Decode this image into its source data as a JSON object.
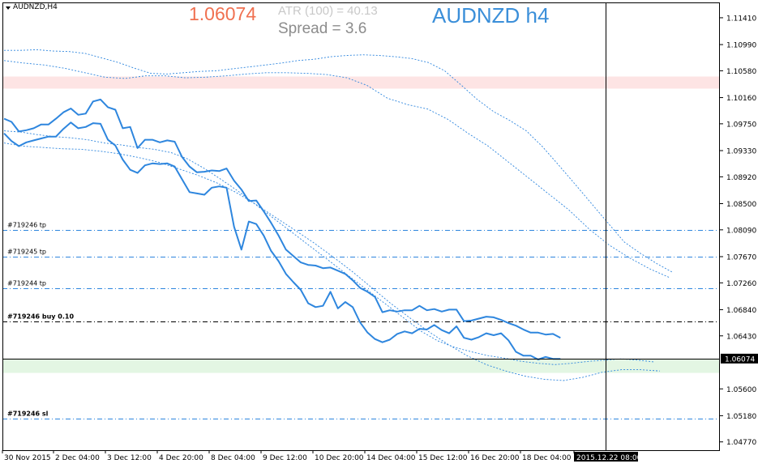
{
  "header": {
    "symbol": "AUDNZD,H4",
    "bid": "1.06074",
    "atr_text": "ATR (100) =  40.13",
    "spread_text": "Spread  =  3.6",
    "big_title": "AUDNZD h4"
  },
  "colors": {
    "price_line": "#2e86de",
    "band_line": "#2e86de",
    "order_line": "#2e86de",
    "resistance_zone": "#fde4e4",
    "support_zone": "#e3f6e3",
    "bid_tag_bg": "#000000",
    "bid_tag_fg": "#ffffff",
    "title_color": "#3b8fd9",
    "bid_color": "#f07050"
  },
  "chart_data": {
    "type": "line",
    "title": "AUDNZD h4",
    "symbol": "AUDNZD,H4",
    "y_range": [
      1.0464,
      1.1165
    ],
    "y_ticks": [
      "1.11410",
      "1.10990",
      "1.10580",
      "1.10160",
      "1.09750",
      "1.09330",
      "1.08920",
      "1.08500",
      "1.08090",
      "1.07670",
      "1.07260",
      "1.06840",
      "1.06430",
      "1.06074",
      "1.05600",
      "1.05180",
      "1.04770"
    ],
    "x_ticks": [
      "30 Nov 2015",
      "2 Dec 04:00",
      "3 Dec 12:00",
      "4 Dec 20:00",
      "8 Dec 04:00",
      "9 Dec 12:00",
      "10 Dec 20:00",
      "14 Dec 04:00",
      "15 Dec 12:00",
      "16 Dec 20:00",
      "18 Dec 04:00",
      "2015.12.22 08:00"
    ],
    "x_index": [
      0,
      1,
      2,
      3,
      4,
      5,
      6,
      7,
      8,
      9,
      10,
      11,
      12,
      13,
      14,
      15,
      16,
      17,
      18,
      19,
      20,
      21,
      22,
      23,
      24,
      25,
      26,
      27,
      28,
      29,
      30,
      31,
      32,
      33,
      34,
      35,
      36,
      37,
      38,
      39,
      40,
      41,
      42,
      43,
      44,
      45,
      46,
      47,
      48,
      49,
      50,
      51,
      52,
      53,
      54,
      55,
      56,
      57,
      58,
      59,
      60,
      61,
      62,
      63,
      64,
      65,
      66,
      67,
      68,
      69,
      70,
      71,
      72,
      73,
      74,
      75,
      76,
      77,
      78,
      79,
      80,
      81,
      82,
      83,
      84,
      85,
      86,
      87,
      88,
      89,
      90,
      91,
      92
    ],
    "series": [
      {
        "values": [
          1.0983,
          1.0978,
          1.0963,
          1.0965,
          1.0968,
          1.0974,
          1.0974,
          1.0983,
          1.0993,
          1.0999,
          1.0989,
          1.0991,
          1.101,
          1.1013,
          1.1001,
          1.0997,
          1.0968,
          1.097,
          1.0937,
          1.095,
          1.095,
          1.0946,
          1.0949,
          1.0947,
          1.0923,
          1.0908,
          1.0899,
          1.09,
          1.0902,
          1.0901,
          1.0905,
          1.0886,
          1.0872,
          1.0854,
          1.0855,
          1.0838,
          1.082,
          1.08,
          1.0778,
          1.0768,
          1.0758,
          1.0754,
          1.0753,
          1.0749,
          1.075,
          1.0745,
          1.074,
          1.073,
          1.0718,
          1.0712,
          1.0704,
          1.068,
          1.0683,
          1.0681,
          1.0683,
          1.0683,
          1.069,
          1.0683,
          1.0685,
          1.0681,
          1.0684,
          1.0684,
          1.0666,
          1.0667,
          1.067,
          1.0673,
          1.0672,
          1.0668,
          1.0663,
          1.0659,
          1.0653,
          1.0648,
          1.0648,
          1.0645,
          1.0646,
          1.064
        ],
        "x_start": 0
      },
      {
        "values": [
          1.096,
          1.0948,
          1.094,
          1.0946,
          1.0949,
          1.0952,
          1.0955,
          1.0955,
          1.0967,
          1.0977,
          1.0968,
          1.097,
          1.0976,
          1.0975,
          1.095,
          1.0941,
          1.0919,
          1.0903,
          1.0898,
          1.091,
          1.0913,
          1.0912,
          1.0913,
          1.0908,
          1.0888,
          1.0868,
          1.0866,
          1.0864,
          1.0875,
          1.0877,
          1.0875,
          1.0814,
          1.0778,
          1.0822,
          1.0818,
          1.08,
          1.0776,
          1.076,
          1.074,
          1.0727,
          1.0715,
          1.0694,
          1.0688,
          1.069,
          1.0712,
          1.0686,
          1.0696,
          1.0688,
          1.0664,
          1.0648,
          1.0638,
          1.0633,
          1.0637,
          1.0646,
          1.065,
          1.0647,
          1.0654,
          1.0653,
          1.066,
          1.0652,
          1.0647,
          1.0658,
          1.064,
          1.0637,
          1.0641,
          1.0647,
          1.0644,
          1.0647,
          1.0636,
          1.0618,
          1.0612,
          1.0612,
          1.0606,
          1.061,
          1.0607,
          1.0607
        ],
        "x_start": 0
      },
      {
        "values": [
          1.109,
          1.109,
          1.1091,
          1.1089,
          1.1088,
          1.1085,
          1.1078,
          1.1071,
          1.1062,
          1.1054,
          1.1053,
          1.1055,
          1.1057,
          1.1058,
          1.1061,
          1.1064,
          1.1067,
          1.107,
          1.1074,
          1.1076,
          1.108,
          1.1082,
          1.1083,
          1.1082,
          1.108,
          1.1077,
          1.1071,
          1.1058,
          1.1036,
          1.1013,
          1.0994,
          1.098,
          1.0964,
          1.0939,
          1.091,
          1.088,
          1.085,
          1.082,
          1.079,
          1.0772,
          1.0756,
          1.0742
        ],
        "x_start": 0,
        "x_step": 2.2
      },
      {
        "values": [
          1.1074,
          1.107,
          1.1067,
          1.1062,
          1.1055,
          1.1048,
          1.1046,
          1.105,
          1.105,
          1.1047,
          1.1048,
          1.105,
          1.1053,
          1.1055,
          1.1055,
          1.1054,
          1.1052,
          1.1047,
          1.1035,
          1.1015,
          1.1005,
          1.0998,
          1.0982,
          1.096,
          1.094,
          1.0915,
          1.089,
          1.0865,
          1.084,
          1.081,
          1.0785,
          1.0765,
          1.0748,
          1.0734
        ],
        "x_start": 0,
        "x_step": 2.72
      },
      {
        "values": [
          1.0964,
          1.0962,
          1.0958,
          1.0955,
          1.0953,
          1.095,
          1.0945,
          1.0942,
          1.0938,
          1.0935,
          1.093,
          1.092,
          1.0905,
          1.0888,
          1.087,
          1.085,
          1.083,
          1.081,
          1.079,
          1.077,
          1.075,
          1.073,
          1.071,
          1.069,
          1.067,
          1.065,
          1.0635,
          1.0625,
          1.0618,
          1.0612,
          1.0608,
          1.0603,
          1.06,
          1.0598,
          1.06,
          1.0603,
          1.0605,
          1.0607,
          1.0605,
          1.0602
        ],
        "x_start": 0,
        "x_step": 2.25
      },
      {
        "values": [
          1.0945,
          1.094,
          1.0938,
          1.0936,
          1.0935,
          1.0932,
          1.0928,
          1.0922,
          1.0915,
          1.0905,
          1.0895,
          1.0883,
          1.0868,
          1.085,
          1.083,
          1.081,
          1.079,
          1.0768,
          1.0745,
          1.072,
          1.0695,
          1.0672,
          1.065,
          1.063,
          1.0612,
          1.0598,
          1.0588,
          1.058,
          1.0575,
          1.0573,
          1.0578,
          1.0586,
          1.059,
          1.059,
          1.0588
        ],
        "x_start": 0,
        "x_step": 2.6
      }
    ],
    "horizontal_lines": [
      {
        "label": "#719246 tp",
        "price": 1.0809
      },
      {
        "label": "#719245 tp",
        "price": 1.0767
      },
      {
        "label": "#719244 tp",
        "price": 1.0718
      },
      {
        "label": "#719246 buy 0.10",
        "price": 1.0665
      },
      {
        "label": "#719246 sl",
        "price": 1.0513
      }
    ],
    "bid_price": 1.06074,
    "zones": [
      {
        "name": "resistance",
        "from": 1.103,
        "to": 1.1049
      },
      {
        "name": "support",
        "from": 1.0585,
        "to": 1.06074
      }
    ]
  }
}
